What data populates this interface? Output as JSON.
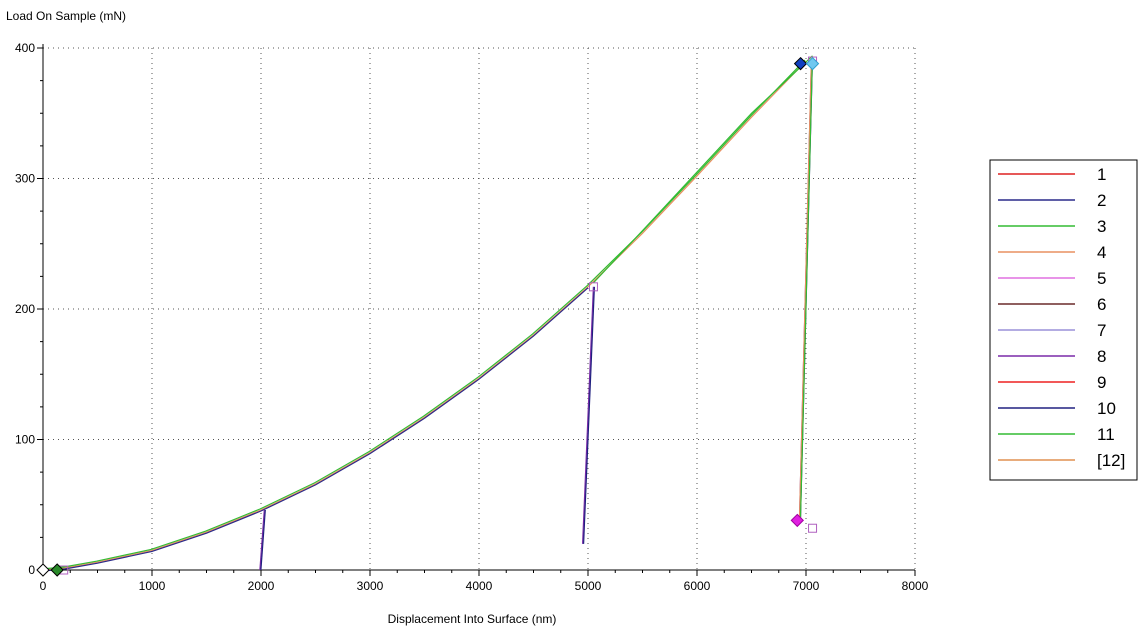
{
  "chart_data": {
    "type": "line",
    "title": "",
    "ylabel": "Load On Sample (mN)",
    "xlabel": "Displacement Into Surface (nm)",
    "xlim": [
      0,
      8000
    ],
    "ylim": [
      0,
      400
    ],
    "x_ticks": [
      "0",
      "1000",
      "2000",
      "3000",
      "4000",
      "5000",
      "6000",
      "7000",
      "8000"
    ],
    "y_ticks": [
      "0",
      "100",
      "200",
      "300",
      "400"
    ],
    "grid": true,
    "legend_position": "right",
    "legend": [
      "1",
      "2",
      "3",
      "4",
      "5",
      "6",
      "7",
      "8",
      "9",
      "10",
      "11",
      "[12]"
    ],
    "series_colors": [
      "#dd2020",
      "#2a2a8a",
      "#33bb33",
      "#e89060",
      "#e070e0",
      "#6a2a2a",
      "#9a90d8",
      "#7a2aa8",
      "#ee2020",
      "#202080",
      "#33bb33",
      "#e09050"
    ],
    "loading_curve": {
      "x": [
        0,
        200,
        500,
        1000,
        1500,
        2000,
        2500,
        3000,
        3500,
        4000,
        4500,
        5000,
        5500,
        6000,
        6500,
        7000
      ],
      "y": [
        0,
        1.5,
        6,
        15,
        29,
        46,
        66,
        90,
        117,
        147,
        180,
        217,
        258,
        302,
        347,
        390
      ]
    },
    "unloading_segments": [
      {
        "x": [
          2030,
          1990
        ],
        "y": [
          46,
          0
        ]
      },
      {
        "x": [
          5050,
          4950
        ],
        "y": [
          217,
          20
        ]
      },
      {
        "x": [
          7050,
          6940
        ],
        "y": [
          390,
          40
        ]
      }
    ],
    "reload_segments": [
      {
        "x": [
          6940,
          7050
        ],
        "y": [
          40,
          392
        ]
      }
    ],
    "offset_curve": {
      "x": [
        5050,
        5500,
        6000,
        6500,
        7060
      ],
      "y": [
        220,
        260,
        305,
        350,
        394
      ]
    },
    "markers": [
      {
        "x": 0,
        "y": 0,
        "color": "#ffffff",
        "stroke": "#000000",
        "shape": "diamond"
      },
      {
        "x": 130,
        "y": 0,
        "color": "#2a8a2a",
        "stroke": "#000000",
        "shape": "diamond"
      },
      {
        "x": 6950,
        "y": 388,
        "color": "#1040c0",
        "stroke": "#000000",
        "shape": "diamond"
      },
      {
        "x": 7060,
        "y": 388,
        "color": "#70c8f0",
        "stroke": "#30a0d0",
        "shape": "diamond"
      },
      {
        "x": 6920,
        "y": 38,
        "color": "#e020e0",
        "stroke": "#a000a0",
        "shape": "diamond"
      }
    ]
  }
}
